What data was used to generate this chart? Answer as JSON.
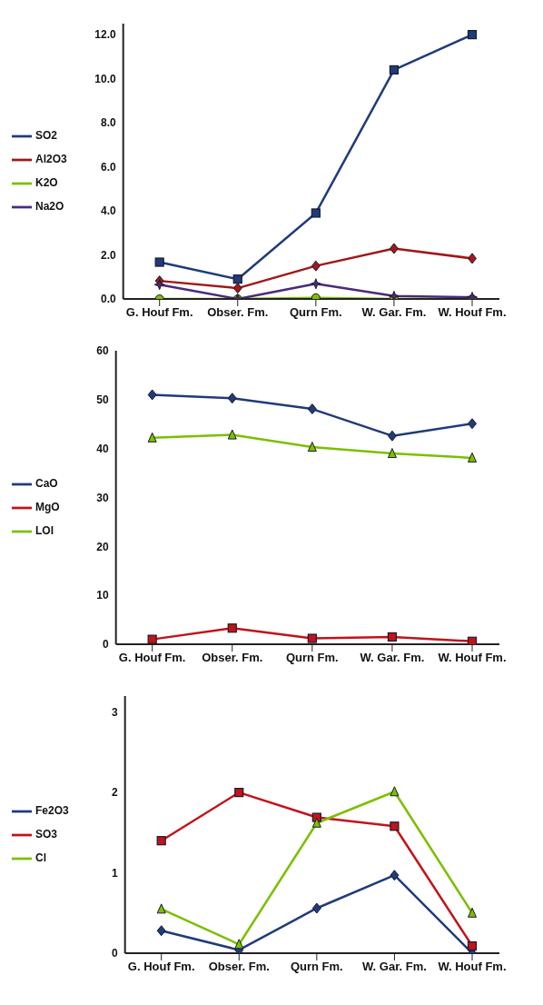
{
  "chart_data": [
    {
      "type": "line",
      "categories": [
        "G. Houf Fm.",
        "Obser. Fm.",
        "Qurn Fm.",
        "W. Gar. Fm.",
        "W. Houf Fm."
      ],
      "ylim": [
        0,
        12.5
      ],
      "yticks": [
        {
          "value": 0,
          "label": "0.0"
        },
        {
          "value": 2,
          "label": "2.0"
        },
        {
          "value": 4,
          "label": "4.0"
        },
        {
          "value": 6,
          "label": "6.0"
        },
        {
          "value": 8,
          "label": "8.0"
        },
        {
          "value": 10,
          "label": "10.0"
        },
        {
          "value": 12,
          "label": "12.0"
        }
      ],
      "legend": "left",
      "grid": false,
      "series": [
        {
          "name": "SO2",
          "color": "#1f3b7a",
          "marker": "square",
          "values": [
            1.67,
            0.9,
            3.9,
            10.4,
            12.0
          ]
        },
        {
          "name": "Al2O3",
          "color": "#a01818",
          "marker": "diamond",
          "values": [
            0.82,
            0.49,
            1.5,
            2.29,
            1.84
          ]
        },
        {
          "name": "K2O",
          "color": "#7cbf00",
          "marker": "circle",
          "values": [
            0,
            0,
            0.05,
            0,
            0
          ]
        },
        {
          "name": "Na2O",
          "color": "#4a2a7a",
          "marker": "star",
          "values": [
            0.65,
            0,
            0.69,
            0.13,
            0.08
          ]
        }
      ]
    },
    {
      "type": "line",
      "categories": [
        "G. Houf Fm.",
        "Obser. Fm.",
        "Qurn Fm.",
        "W. Gar. Fm.",
        "W. Houf Fm."
      ],
      "ylim": [
        0,
        60
      ],
      "yticks": [
        0,
        10,
        20,
        30,
        40,
        50,
        60
      ],
      "legend": "left",
      "grid": false,
      "series": [
        {
          "name": "CaO",
          "color": "#1f3b7a",
          "marker": "diamond",
          "values": [
            51.0,
            50.3,
            48.1,
            42.6,
            45.1
          ]
        },
        {
          "name": "MgO",
          "color": "#c0141a",
          "marker": "square",
          "values": [
            1.0,
            3.3,
            1.2,
            1.5,
            0.6
          ]
        },
        {
          "name": "LOI",
          "color": "#7cbf00",
          "marker": "triangle",
          "values": [
            42.2,
            42.8,
            40.3,
            39.0,
            38.1
          ]
        }
      ]
    },
    {
      "type": "line",
      "categories": [
        "G. Houf Fm.",
        "Obser. Fm.",
        "Qurn Fm.",
        "W. Gar. Fm.",
        "W. Houf Fm."
      ],
      "ylim": [
        0,
        3.2
      ],
      "yticks": [
        0,
        1,
        2,
        3
      ],
      "legend": "left",
      "grid": false,
      "series": [
        {
          "name": "Fe2O3",
          "color": "#1f3b7a",
          "marker": "diamond",
          "values": [
            0.28,
            0.04,
            0.56,
            0.97,
            0
          ]
        },
        {
          "name": "SO3",
          "color": "#c0141a",
          "marker": "square",
          "values": [
            1.4,
            2.0,
            1.69,
            1.58,
            0.09
          ]
        },
        {
          "name": "Cl",
          "color": "#7cbf00",
          "marker": "triangle",
          "values": [
            0.55,
            0.11,
            1.62,
            2.01,
            0.5
          ]
        }
      ]
    }
  ]
}
